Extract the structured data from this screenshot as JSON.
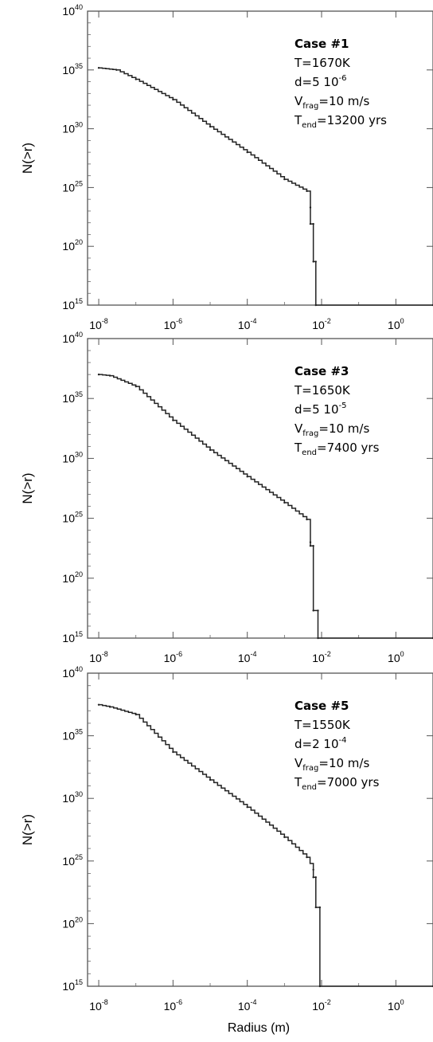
{
  "chart_data": [
    {
      "type": "line",
      "xlabel": "",
      "ylabel": "N(>r)",
      "x_scale": "log",
      "y_scale": "log",
      "xlim": [
        5e-09,
        10
      ],
      "ylim": [
        1000000000000000.0,
        1e+40
      ],
      "x_ticks": [
        "10^-8",
        "10^-6",
        "10^-4",
        "10^-2",
        "10^0"
      ],
      "y_ticks": [
        "10^15",
        "10^20",
        "10^25",
        "10^30",
        "10^35",
        "10^40"
      ],
      "annotation": {
        "title": "Case #1",
        "lines": [
          {
            "text": "T=1670K"
          },
          {
            "text": "d=5 10",
            "sup": "-6"
          },
          {
            "text": "V",
            "sub": "frag",
            "rest": "=10 m/s"
          },
          {
            "text": "T",
            "sub": "end",
            "rest": "=13200  yrs"
          }
        ]
      },
      "series": [
        {
          "x": [
            1e-08,
            3e-08,
            1e-07,
            1e-06,
            1e-05,
            0.0001,
            0.001,
            0.004,
            0.005,
            0.005,
            0.006,
            0.006,
            0.007,
            0.007,
            10
          ],
          "y": [
            1.5e+35,
            1e+35,
            1.6e+34,
            3e+32,
            1.5e+30,
            1e+28,
            5e+25,
            5e+24,
            2e+23,
            8e+21,
            8e+21,
            5e+18,
            5e+18,
            1000000000000000.0,
            1000000000000000.0
          ]
        }
      ]
    },
    {
      "type": "line",
      "xlabel": "",
      "ylabel": "N(>r)",
      "x_scale": "log",
      "y_scale": "log",
      "xlim": [
        5e-09,
        10
      ],
      "ylim": [
        1000000000000000.0,
        1e+40
      ],
      "x_ticks": [
        "10^-8",
        "10^-6",
        "10^-4",
        "10^-2",
        "10^0"
      ],
      "y_ticks": [
        "10^15",
        "10^20",
        "10^25",
        "10^30",
        "10^35",
        "10^40"
      ],
      "annotation": {
        "title": "Case #3",
        "lines": [
          {
            "text": "T=1650K"
          },
          {
            "text": "d=5 10",
            "sup": "-5"
          },
          {
            "text": "V",
            "sub": "frag",
            "rest": "=10 m/s"
          },
          {
            "text": "T",
            "sub": "end",
            "rest": "=7400 yrs"
          }
        ]
      },
      "series": [
        {
          "x": [
            1e-08,
            2e-08,
            1e-07,
            1e-06,
            1e-05,
            0.0001,
            0.001,
            0.004,
            0.005,
            0.005,
            0.006,
            0.006,
            0.008,
            0.008,
            10
          ],
          "y": [
            1e+37,
            8e+36,
            1e+36,
            1.5e+33,
            5e+30,
            3e+28,
            2e+26,
            8e+24,
            1e+23,
            5e+22,
            5e+22,
            2e+17,
            2e+17,
            1000000000000000.0,
            1000000000000000.0
          ]
        }
      ]
    },
    {
      "type": "line",
      "xlabel": "Radius (m)",
      "ylabel": "N(>r)",
      "x_scale": "log",
      "y_scale": "log",
      "xlim": [
        5e-09,
        10
      ],
      "ylim": [
        1000000000000000.0,
        1e+40
      ],
      "x_ticks": [
        "10^-8",
        "10^-6",
        "10^-4",
        "10^-2",
        "10^0"
      ],
      "y_ticks": [
        "10^15",
        "10^20",
        "10^25",
        "10^30",
        "10^35",
        "10^40"
      ],
      "annotation": {
        "title": "Case #5",
        "lines": [
          {
            "text": "T=1550K"
          },
          {
            "text": "d=2 10",
            "sup": "-4"
          },
          {
            "text": "V",
            "sub": "frag",
            "rest": "=10 m/s"
          },
          {
            "text": "T",
            "sub": "end",
            "rest": "=7000 yrs"
          }
        ]
      },
      "series": [
        {
          "x": [
            1e-08,
            2e-08,
            1e-07,
            1e-06,
            1e-05,
            0.0001,
            0.001,
            0.004,
            0.006,
            0.006,
            0.007,
            0.007,
            0.009,
            0.009,
            10
          ],
          "y": [
            3e+37,
            2e+37,
            5e+36,
            5e+33,
            3e+31,
            2e+29,
            8e+26,
            2e+25,
            2e+24,
            5e+23,
            5e+23,
            2e+21,
            2e+21,
            1000000000000000.0,
            1000000000000000.0
          ]
        }
      ]
    }
  ]
}
